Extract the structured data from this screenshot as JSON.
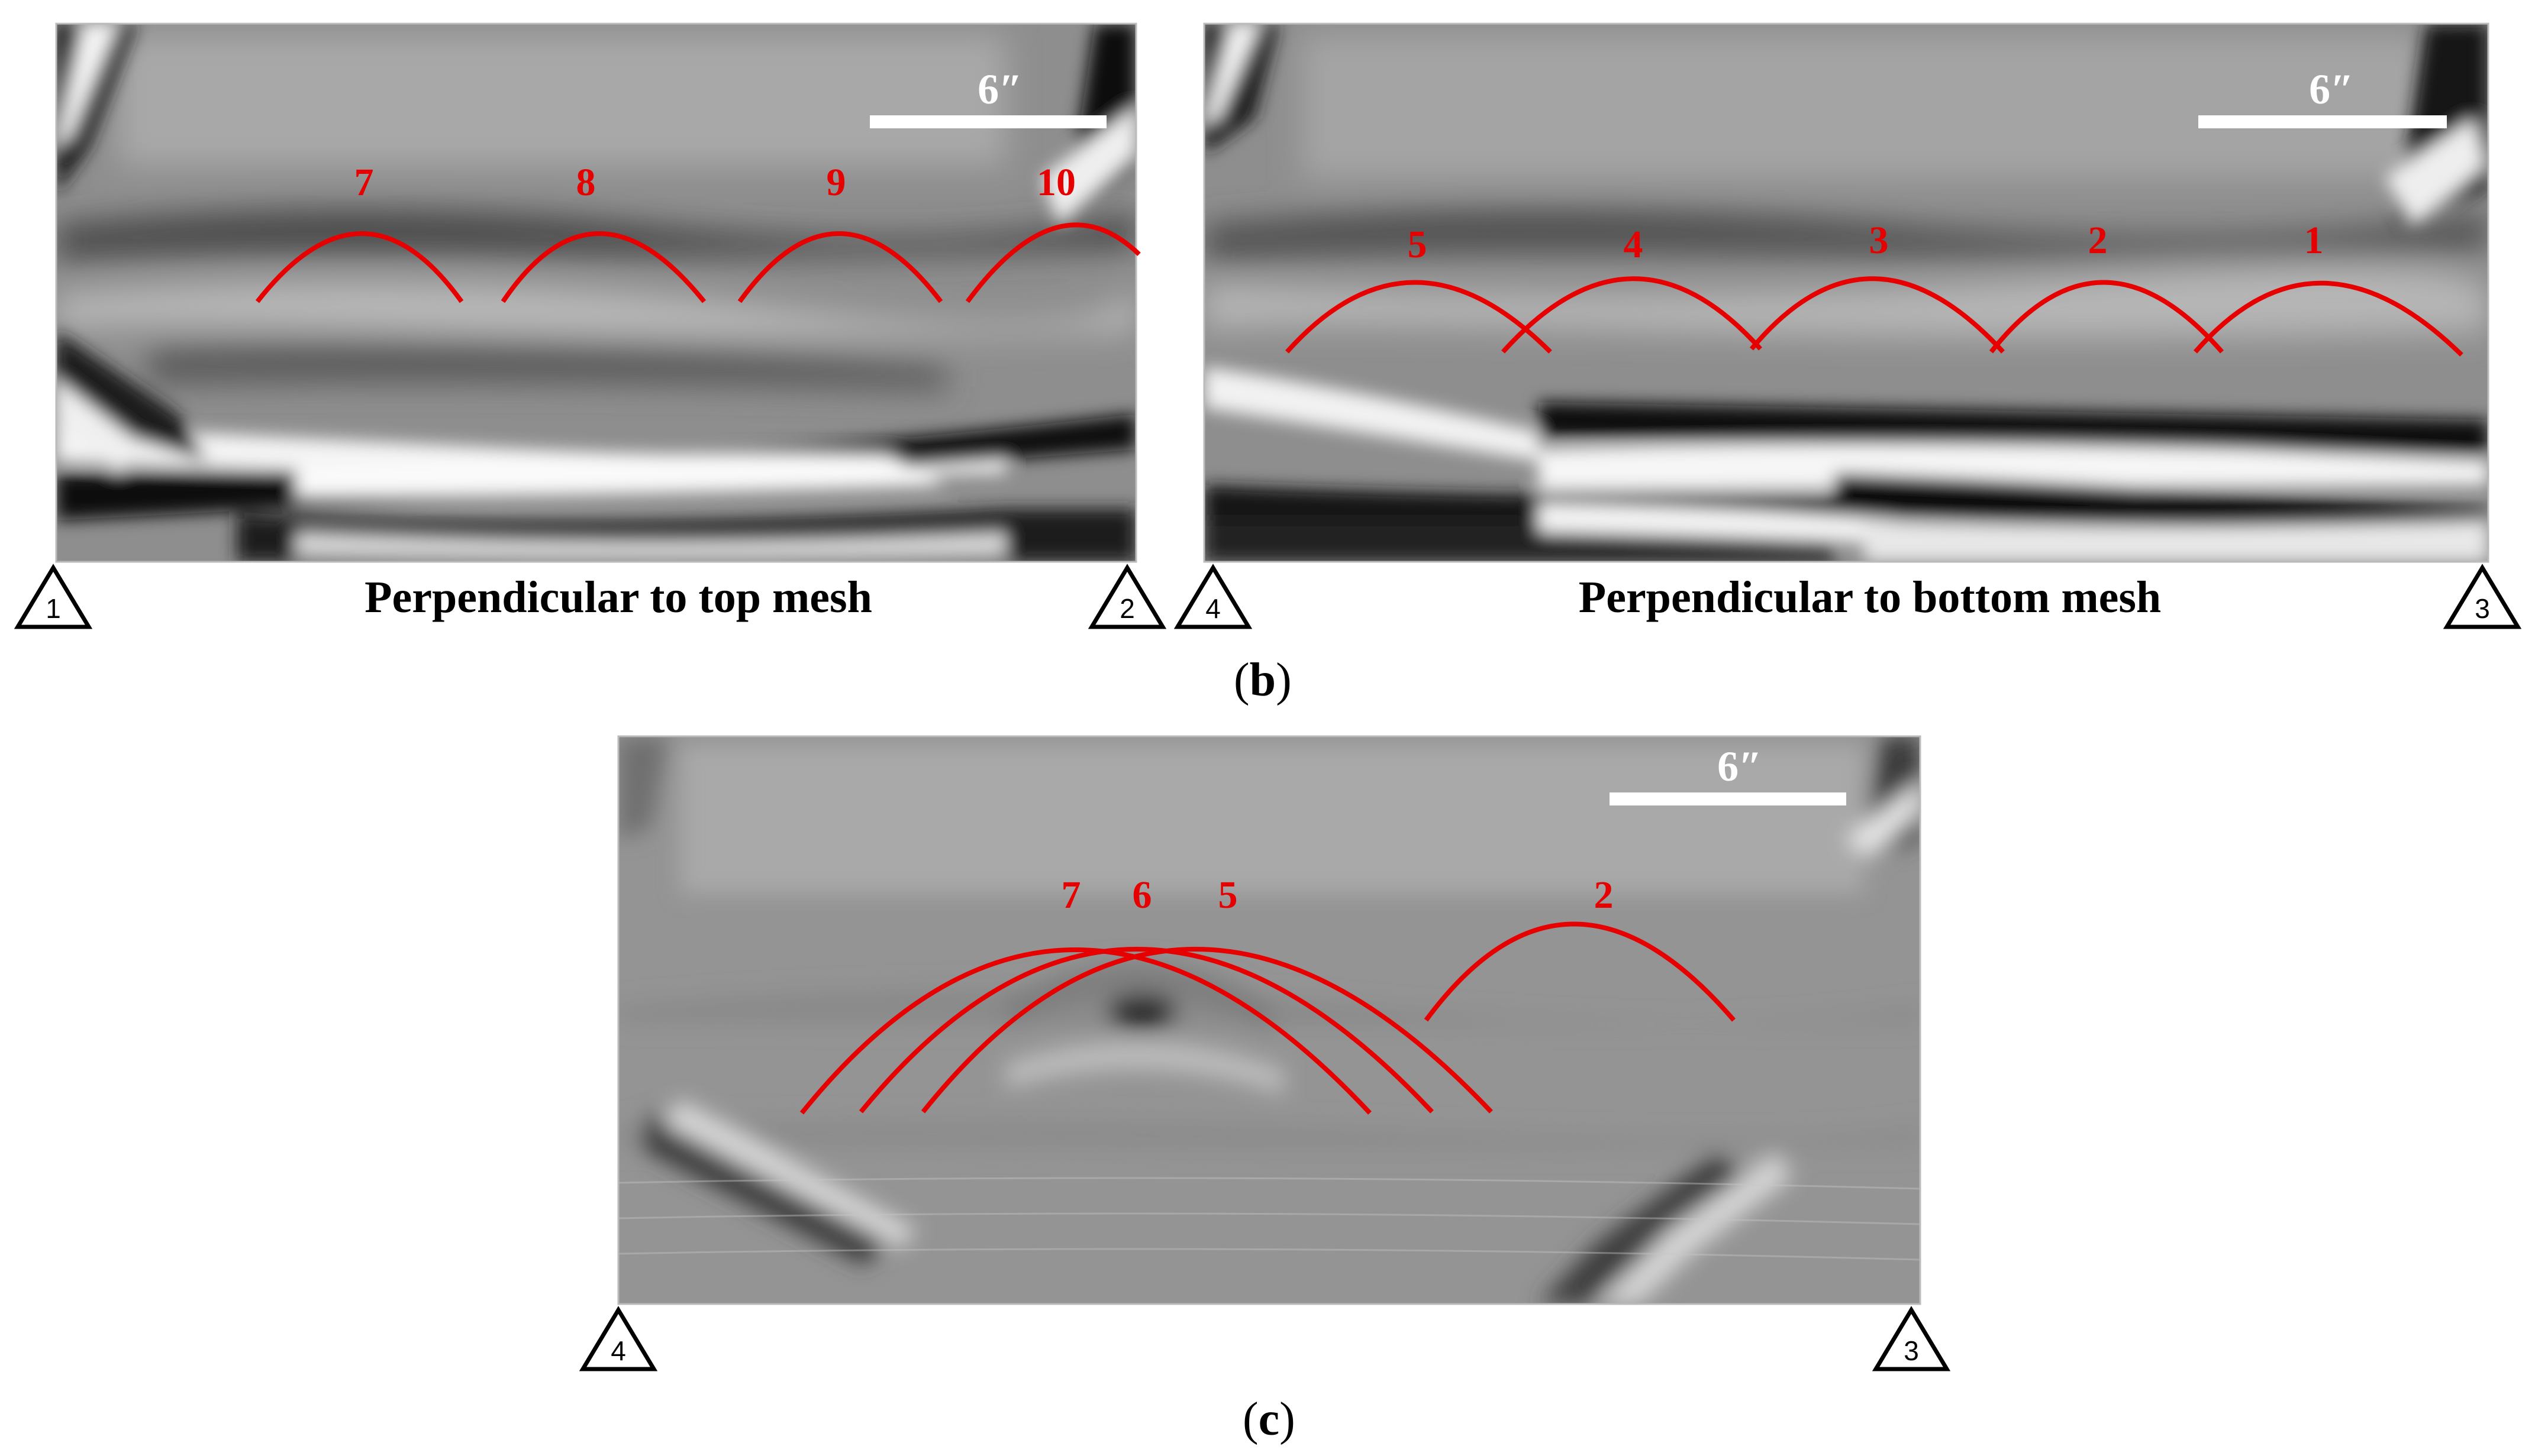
{
  "panel_b": {
    "left": {
      "title": "Perpendicular to top mesh",
      "scale_label": "6″",
      "corner_left": "1",
      "corner_right": "2",
      "hyperbola_labels": [
        "7",
        "8",
        "9",
        "10"
      ]
    },
    "right": {
      "title": "Perpendicular to bottom mesh",
      "scale_label": "6″",
      "corner_left": "4",
      "corner_right": "3",
      "hyperbola_labels": [
        "5",
        "4",
        "3",
        "2",
        "1"
      ]
    },
    "caption_letter": "b"
  },
  "panel_c": {
    "scale_label": "6″",
    "corner_left": "4",
    "corner_right": "3",
    "hyperbola_labels": [
      "7",
      "6",
      "5",
      "2"
    ],
    "caption_letter": "c"
  },
  "colors": {
    "annotation": "#e60000",
    "scale_bar": "#ffffff",
    "background": "#ffffff"
  }
}
